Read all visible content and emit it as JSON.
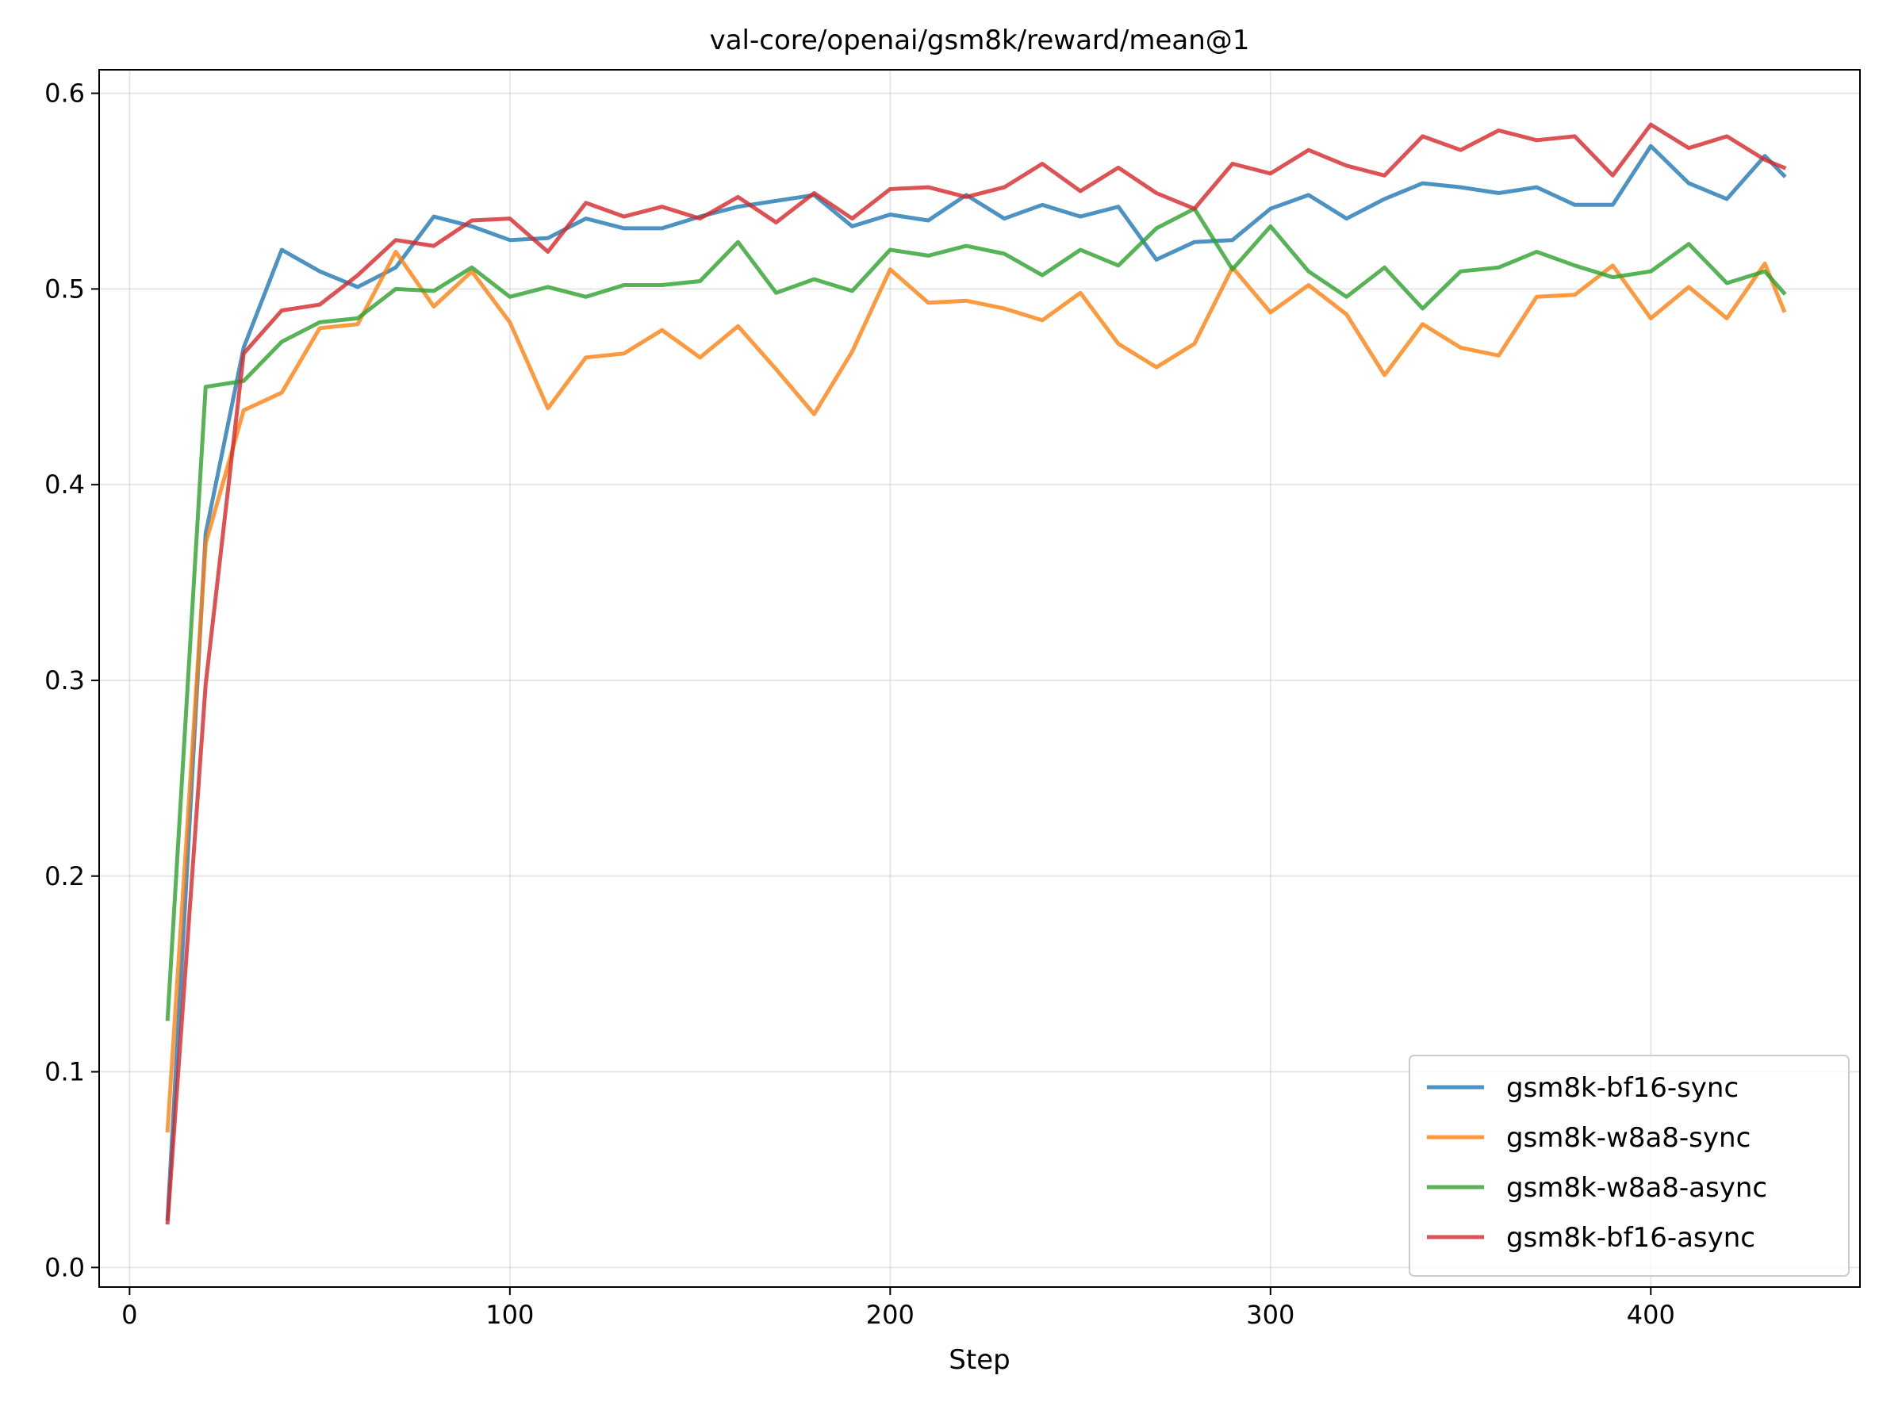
{
  "chart_data": {
    "type": "line",
    "title": "val-core/openai/gsm8k/reward/mean@1",
    "xlabel": "Step",
    "ylabel": "",
    "xlim": [
      -8,
      455
    ],
    "ylim": [
      -0.01,
      0.612
    ],
    "xticks": [
      0,
      100,
      200,
      300,
      400
    ],
    "xtick_labels": [
      "0",
      "100",
      "200",
      "300",
      "400"
    ],
    "yticks": [
      0.0,
      0.1,
      0.2,
      0.3,
      0.4,
      0.5,
      0.6
    ],
    "ytick_labels": [
      "0.0",
      "0.1",
      "0.2",
      "0.3",
      "0.4",
      "0.5",
      "0.6"
    ],
    "grid": true,
    "legend_position": "lower-right",
    "x": [
      10,
      20,
      30,
      40,
      50,
      60,
      70,
      80,
      90,
      100,
      110,
      120,
      130,
      140,
      150,
      160,
      170,
      180,
      190,
      200,
      210,
      220,
      230,
      240,
      250,
      260,
      270,
      280,
      290,
      300,
      310,
      320,
      330,
      340,
      350,
      360,
      370,
      380,
      390,
      400,
      410,
      420,
      430,
      435
    ],
    "series": [
      {
        "name": "gsm8k-bf16-sync",
        "color": "#1f77b4",
        "values": [
          0.025,
          0.375,
          0.47,
          0.52,
          0.509,
          0.501,
          0.511,
          0.537,
          0.532,
          0.525,
          0.526,
          0.536,
          0.531,
          0.531,
          0.537,
          0.542,
          0.545,
          0.548,
          0.532,
          0.538,
          0.535,
          0.548,
          0.536,
          0.543,
          0.537,
          0.542,
          0.515,
          0.524,
          0.525,
          0.541,
          0.548,
          0.536,
          0.546,
          0.554,
          0.552,
          0.549,
          0.552,
          0.543,
          0.543,
          0.573,
          0.554,
          0.546,
          0.568,
          0.558
        ]
      },
      {
        "name": "gsm8k-w8a8-sync",
        "color": "#ff7f0e",
        "values": [
          0.07,
          0.37,
          0.438,
          0.447,
          0.48,
          0.482,
          0.519,
          0.491,
          0.509,
          0.483,
          0.439,
          0.465,
          0.467,
          0.479,
          0.465,
          0.481,
          0.459,
          0.436,
          0.468,
          0.51,
          0.493,
          0.494,
          0.49,
          0.484,
          0.498,
          0.472,
          0.46,
          0.472,
          0.511,
          0.488,
          0.502,
          0.487,
          0.456,
          0.482,
          0.47,
          0.466,
          0.496,
          0.497,
          0.512,
          0.485,
          0.501,
          0.485,
          0.513,
          0.489
        ]
      },
      {
        "name": "gsm8k-w8a8-async",
        "color": "#2ca02c",
        "values": [
          0.127,
          0.45,
          0.453,
          0.473,
          0.483,
          0.485,
          0.5,
          0.499,
          0.511,
          0.496,
          0.501,
          0.496,
          0.502,
          0.502,
          0.504,
          0.524,
          0.498,
          0.505,
          0.499,
          0.52,
          0.517,
          0.522,
          0.518,
          0.507,
          0.52,
          0.512,
          0.531,
          0.541,
          0.51,
          0.532,
          0.509,
          0.496,
          0.511,
          0.49,
          0.509,
          0.511,
          0.519,
          0.512,
          0.506,
          0.509,
          0.523,
          0.503,
          0.509,
          0.498
        ]
      },
      {
        "name": "gsm8k-bf16-async",
        "color": "#d62728",
        "values": [
          0.023,
          0.298,
          0.467,
          0.489,
          0.492,
          0.507,
          0.525,
          0.522,
          0.535,
          0.536,
          0.519,
          0.544,
          0.537,
          0.542,
          0.536,
          0.547,
          0.534,
          0.549,
          0.536,
          0.551,
          0.552,
          0.547,
          0.552,
          0.564,
          0.55,
          0.562,
          0.549,
          0.541,
          0.564,
          0.559,
          0.571,
          0.563,
          0.558,
          0.578,
          0.571,
          0.581,
          0.576,
          0.578,
          0.558,
          0.584,
          0.572,
          0.578,
          0.566,
          0.562
        ]
      }
    ]
  }
}
